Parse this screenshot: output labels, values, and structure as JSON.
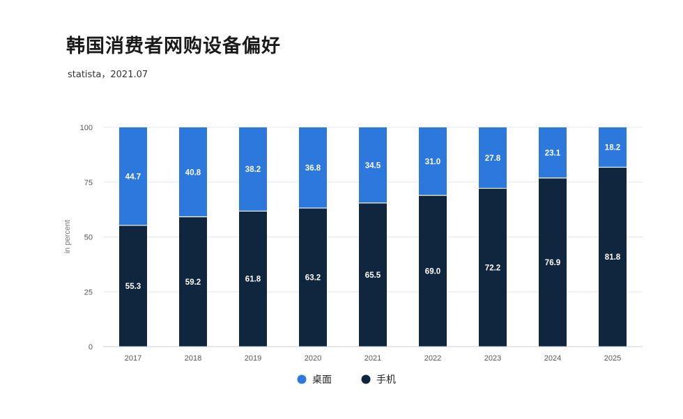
{
  "title": "韩国消费者网购设备偏好",
  "subtitle": "statista，2021.07",
  "colors": {
    "desktop": "#2c78dc",
    "mobile": "#0f263e",
    "grid": "#e3e7ed"
  },
  "chart_data": {
    "type": "bar",
    "stacked": true,
    "categories": [
      "2017",
      "2018",
      "2019",
      "2020",
      "2021",
      "2022",
      "2023",
      "2024",
      "2025"
    ],
    "series": [
      {
        "name": "手机",
        "values": [
          55.3,
          59.2,
          61.8,
          63.2,
          65.5,
          69.0,
          72.2,
          76.9,
          81.8
        ]
      },
      {
        "name": "桌面",
        "values": [
          44.7,
          40.8,
          38.2,
          36.8,
          34.5,
          31.0,
          27.8,
          23.1,
          18.2
        ]
      }
    ],
    "ylabel": "in percent",
    "ylim": [
      0,
      100
    ],
    "yticks": [
      "0",
      "25",
      "50",
      "75",
      "100"
    ],
    "grid": true,
    "legend_position": "bottom",
    "legend": [
      "桌面",
      "手机"
    ]
  }
}
